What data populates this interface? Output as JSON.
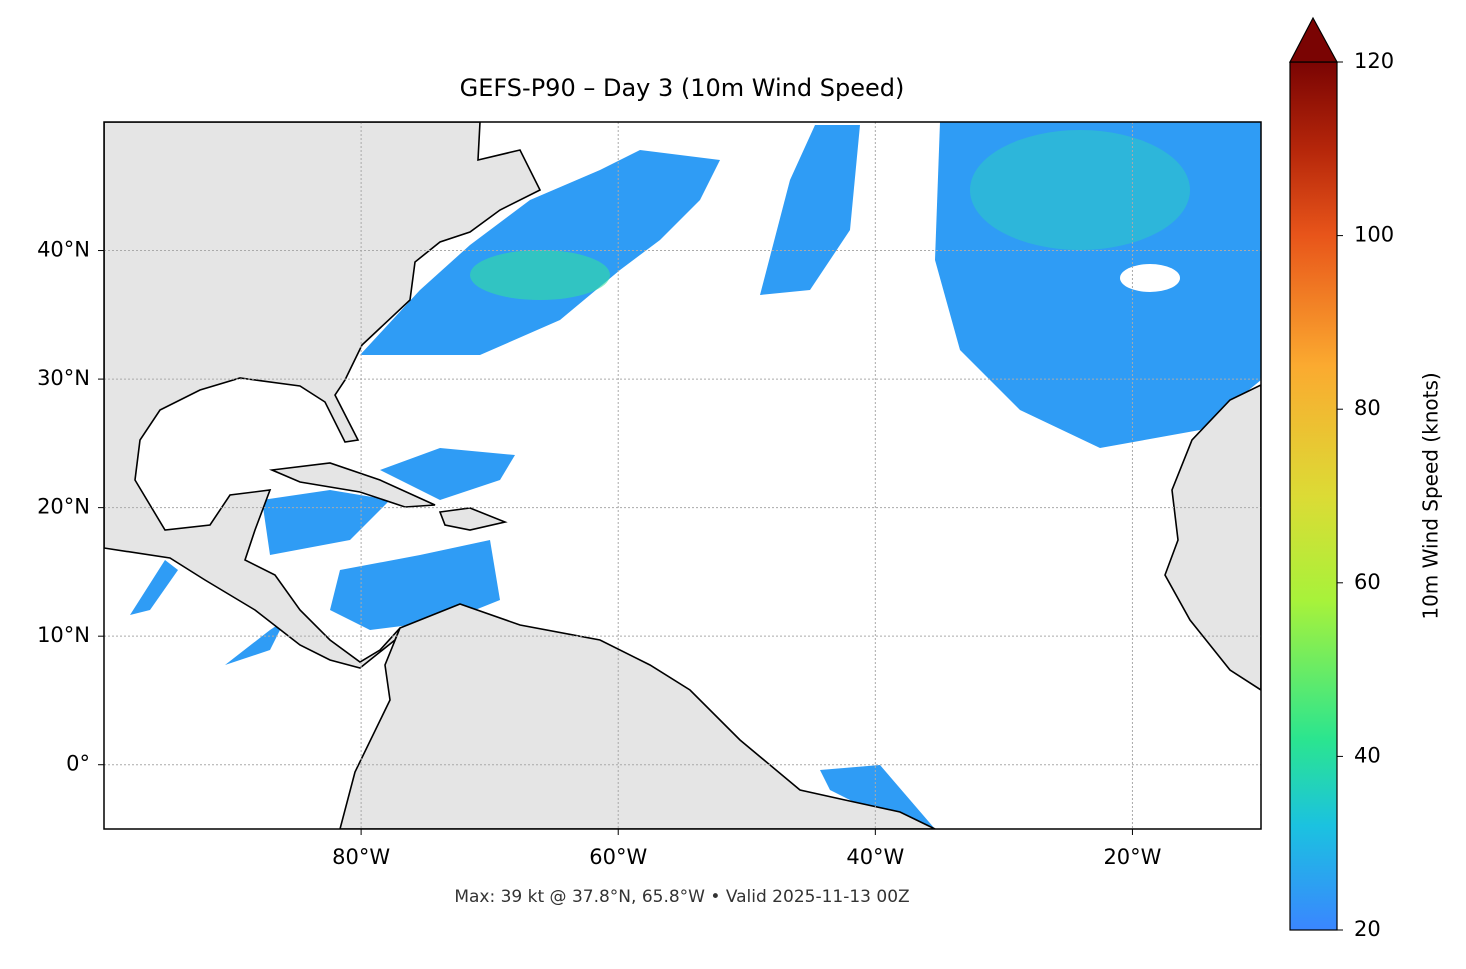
{
  "chart_data": {
    "type": "map",
    "title": "GEFS-P90 – Day 3 (10m Wind Speed)",
    "footer": "Max: 39 kt @ 37.8°N, 65.8°W • Valid 2025-11-13 00Z",
    "xlim": [
      -100,
      -10
    ],
    "xticks": [
      {
        "value": -80,
        "label": "80°W"
      },
      {
        "value": -60,
        "label": "60°W"
      },
      {
        "value": -40,
        "label": "40°W"
      },
      {
        "value": -20,
        "label": "20°W"
      }
    ],
    "ylim": [
      -5,
      50
    ],
    "yticks": [
      {
        "value": 0,
        "label": "0°"
      },
      {
        "value": 10,
        "label": "10°N"
      },
      {
        "value": 20,
        "label": "20°N"
      },
      {
        "value": 30,
        "label": "30°N"
      },
      {
        "value": 40,
        "label": "40°N"
      }
    ],
    "grid": true,
    "colorbar": {
      "label": "10m Wind Speed (knots)",
      "lim": [
        20,
        120
      ],
      "ticks": [
        20,
        40,
        60,
        80,
        100,
        120
      ]
    }
  }
}
